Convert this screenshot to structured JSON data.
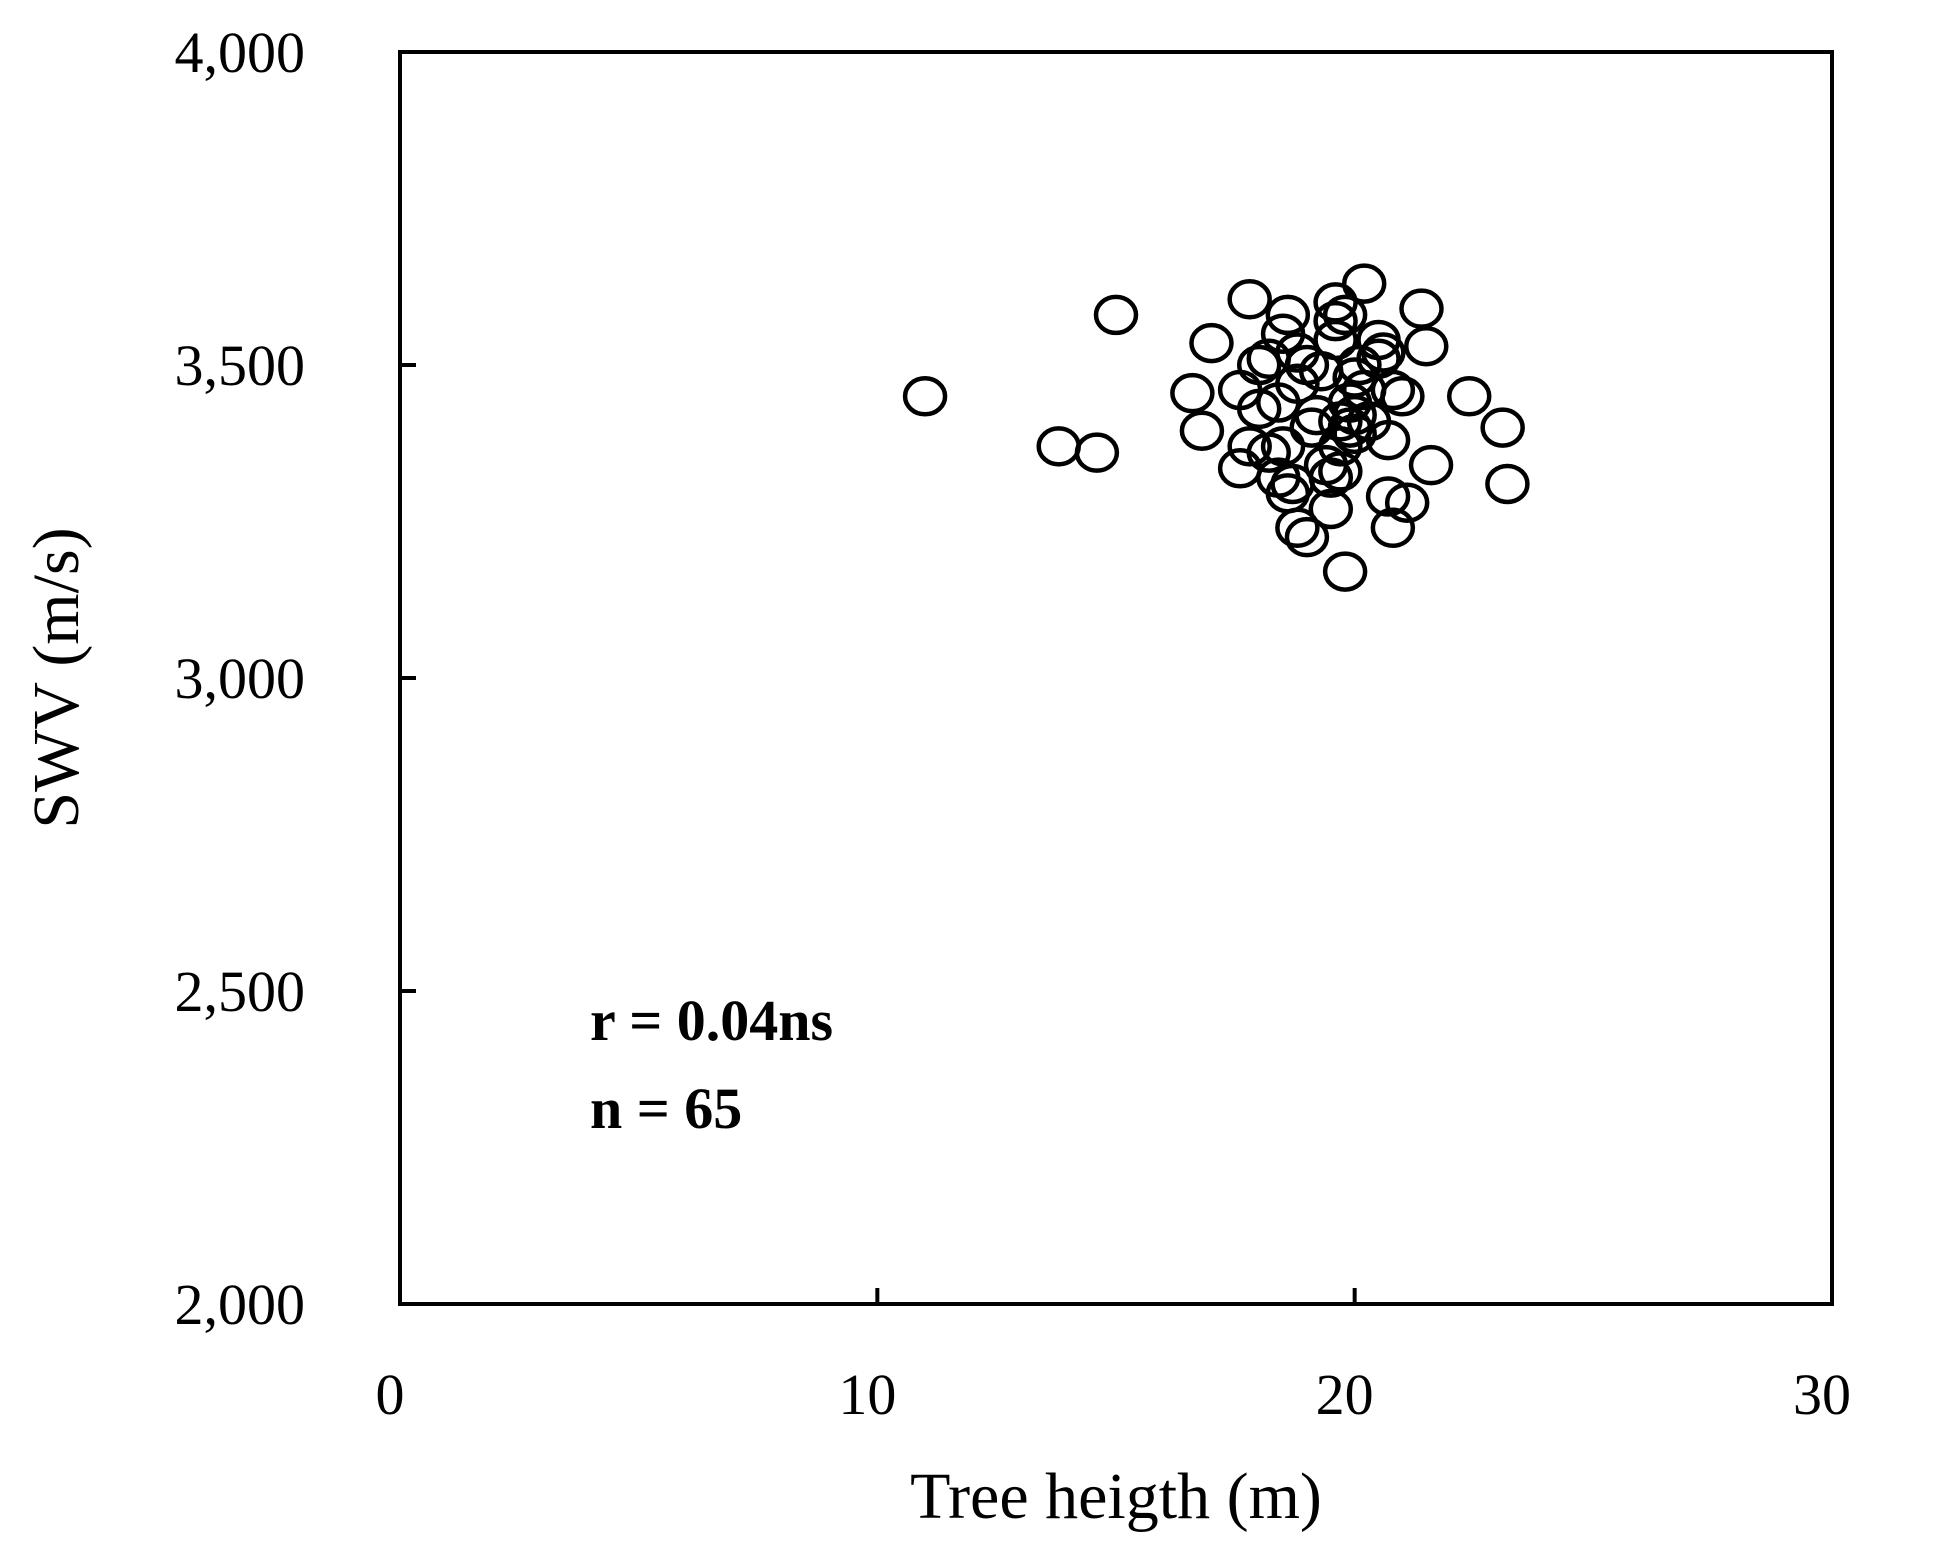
{
  "chart_data": {
    "type": "scatter",
    "title": "",
    "xlabel": "Tree heigth (m)",
    "ylabel": "SWV (m/s)",
    "xlim": [
      0,
      30
    ],
    "ylim": [
      2000,
      4000
    ],
    "xticks": [
      0,
      10,
      20,
      30
    ],
    "yticks": [
      2000,
      2500,
      3000,
      3500,
      4000
    ],
    "xtick_labels": [
      "0",
      "10",
      "20",
      "30"
    ],
    "ytick_labels": [
      "2,000",
      "2,500",
      "3,000",
      "3,500",
      "4,000"
    ],
    "grid": false,
    "legend": "none",
    "annotations": [
      "r = 0.04ns",
      "n = 65"
    ],
    "series": [
      {
        "marker": "open-circle",
        "x": [
          11.0,
          13.8,
          14.6,
          15.0,
          16.6,
          16.8,
          17.0,
          17.6,
          17.6,
          17.8,
          17.8,
          18.0,
          18.0,
          18.2,
          18.2,
          18.4,
          18.4,
          18.5,
          18.5,
          18.6,
          18.6,
          18.7,
          18.8,
          18.8,
          18.8,
          19.0,
          19.0,
          19.1,
          19.2,
          19.3,
          19.4,
          19.5,
          19.5,
          19.6,
          19.6,
          19.6,
          19.7,
          19.7,
          19.7,
          19.8,
          19.8,
          19.9,
          19.9,
          20.0,
          20.0,
          20.0,
          20.1,
          20.2,
          20.2,
          20.3,
          20.5,
          20.6,
          20.7,
          20.7,
          20.8,
          20.8,
          21.0,
          21.1,
          21.4,
          21.5,
          21.6,
          22.4,
          23.1,
          23.2,
          20.5
        ],
        "y": [
          3450,
          3370,
          3360,
          3580,
          3455,
          3395,
          3535,
          3460,
          3335,
          3605,
          3370,
          3500,
          3430,
          3510,
          3360,
          3440,
          3320,
          3370,
          3550,
          3580,
          3295,
          3310,
          3470,
          3240,
          3520,
          3225,
          3500,
          3400,
          3420,
          3490,
          3340,
          3320,
          3270,
          3570,
          3600,
          3540,
          3410,
          3370,
          3330,
          3580,
          3170,
          3400,
          3440,
          3480,
          3420,
          3390,
          3500,
          3460,
          3630,
          3410,
          3540,
          3520,
          3380,
          3290,
          3240,
          3460,
          3450,
          3280,
          3590,
          3530,
          3340,
          3450,
          3400,
          3310,
          3510
        ]
      }
    ]
  }
}
